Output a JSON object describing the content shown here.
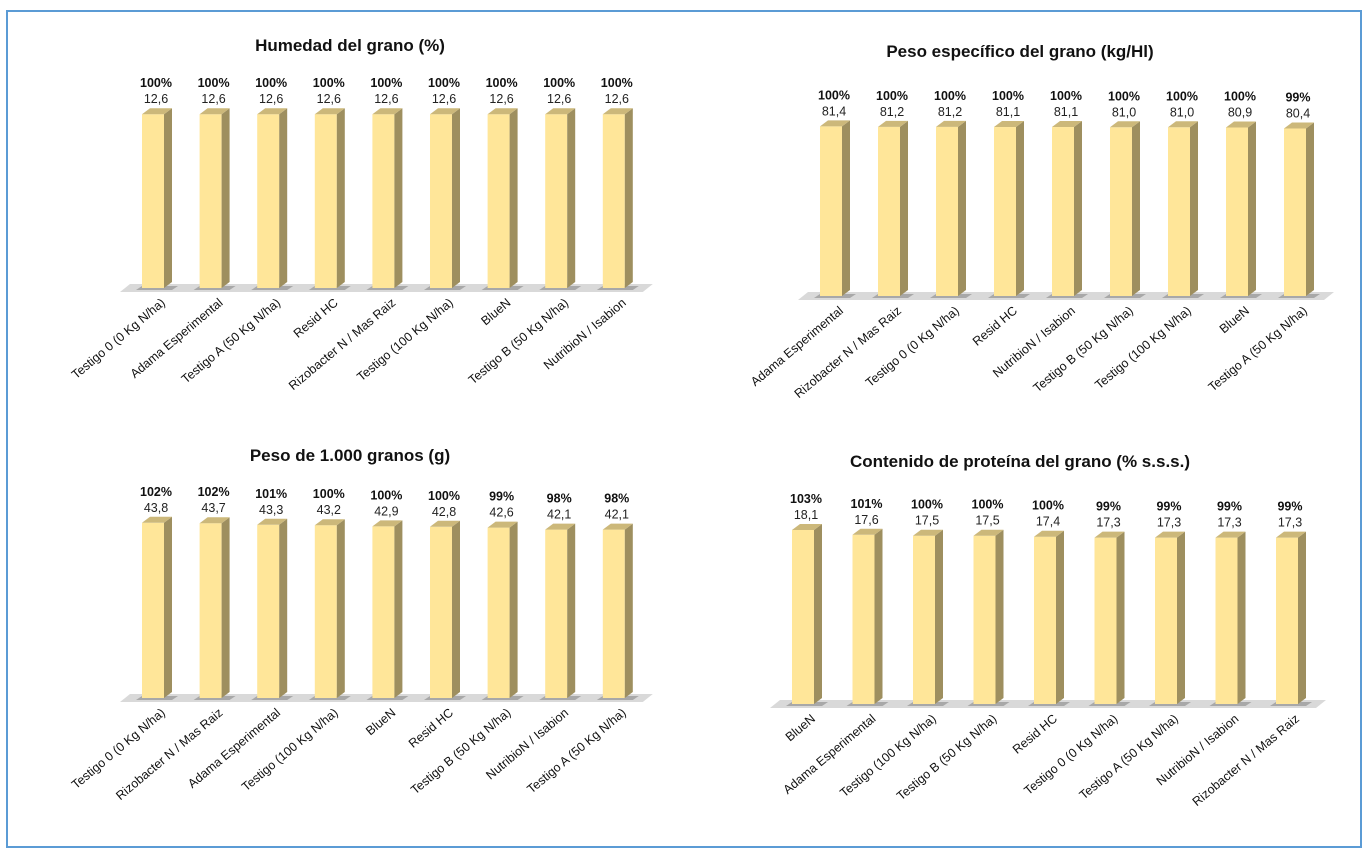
{
  "chart_data": [
    {
      "type": "bar",
      "title": "Humedad del grano (%)",
      "categories": [
        "Testigo 0 (0 Kg N/ha)",
        "Adama Esperimental",
        "Testigo A (50 Kg N/ha)",
        "Resid HC",
        "Rizobacter N / Mas Raiz",
        "Testigo (100 Kg N/ha)",
        "BlueN",
        "Testigo B (50 Kg N/ha)",
        "NutribioN / Isabion"
      ],
      "values": [
        12.6,
        12.6,
        12.6,
        12.6,
        12.6,
        12.6,
        12.6,
        12.6,
        12.6
      ],
      "value_labels": [
        "12,6",
        "12,6",
        "12,6",
        "12,6",
        "12,6",
        "12,6",
        "12,6",
        "12,6",
        "12,6"
      ],
      "percent_labels": [
        "100%",
        "100%",
        "100%",
        "100%",
        "100%",
        "100%",
        "100%",
        "100%",
        "100%"
      ],
      "ylim": [
        0,
        14.5
      ],
      "grid": false,
      "bar_color": "#ffe699"
    },
    {
      "type": "bar",
      "title": "Peso específico del grano (kg/Hl)",
      "categories": [
        "Adama Esperimental",
        "Rizobacter N / Mas Raiz",
        "Testigo 0 (0 Kg N/ha)",
        "Resid HC",
        "NutribioN / Isabion",
        "Testigo B (50 Kg N/ha)",
        "Testigo (100 Kg N/ha)",
        "BlueN",
        "Testigo A (50 Kg N/ha)"
      ],
      "values": [
        81.4,
        81.2,
        81.2,
        81.1,
        81.1,
        81.0,
        81.0,
        80.9,
        80.4
      ],
      "value_labels": [
        "81,4",
        "81,2",
        "81,2",
        "81,1",
        "81,1",
        "81,0",
        "81,0",
        "80,9",
        "80,4"
      ],
      "percent_labels": [
        "100%",
        "100%",
        "100%",
        "100%",
        "100%",
        "100%",
        "100%",
        "100%",
        "99%"
      ],
      "ylim": [
        0,
        96
      ],
      "grid": false,
      "bar_color": "#ffe699"
    },
    {
      "type": "bar",
      "title": "Peso de 1.000 granos (g)",
      "categories": [
        "Testigo 0 (0 Kg N/ha)",
        "Rizobacter N / Mas Raiz",
        "Adama Esperimental",
        "Testigo (100 Kg N/ha)",
        "BlueN",
        "Resid HC",
        "Testigo B (50 Kg N/ha)",
        "NutribioN / Isabion",
        "Testigo A (50 Kg N/ha)"
      ],
      "values": [
        43.8,
        43.7,
        43.3,
        43.2,
        42.9,
        42.8,
        42.6,
        42.1,
        42.1
      ],
      "value_labels": [
        "43,8",
        "43,7",
        "43,3",
        "43,2",
        "42,9",
        "42,8",
        "42,6",
        "42,1",
        "42,1"
      ],
      "percent_labels": [
        "102%",
        "102%",
        "101%",
        "100%",
        "100%",
        "100%",
        "99%",
        "98%",
        "98%"
      ],
      "ylim": [
        0,
        50
      ],
      "grid": false,
      "bar_color": "#ffe699"
    },
    {
      "type": "bar",
      "title": "Contenido de proteína del grano (% s.s.s.)",
      "categories": [
        "BlueN",
        "Adama Esperimental",
        "Testigo (100 Kg N/ha)",
        "Testigo B (50 Kg N/ha)",
        "Resid HC",
        "Testigo 0 (0 Kg N/ha)",
        "Testigo A (50 Kg N/ha)",
        "NutribioN / Isabion",
        "Rizobacter N / Mas Raiz"
      ],
      "values": [
        18.1,
        17.6,
        17.5,
        17.5,
        17.4,
        17.3,
        17.3,
        17.3,
        17.3
      ],
      "value_labels": [
        "18,1",
        "17,6",
        "17,5",
        "17,5",
        "17,4",
        "17,3",
        "17,3",
        "17,3",
        "17,3"
      ],
      "percent_labels": [
        "103%",
        "101%",
        "100%",
        "100%",
        "100%",
        "99%",
        "99%",
        "99%",
        "99%"
      ],
      "ylim": [
        0,
        20.8
      ],
      "grid": false,
      "bar_color": "#ffe699"
    }
  ]
}
